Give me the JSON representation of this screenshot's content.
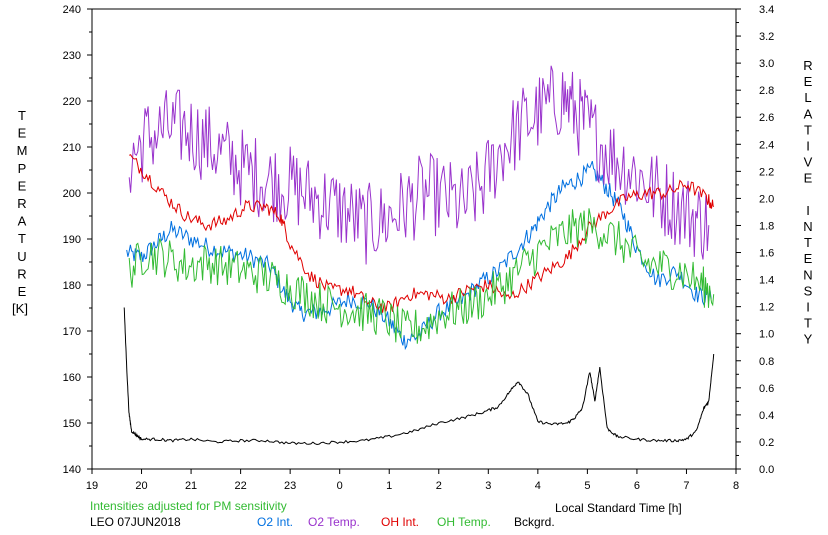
{
  "chart_data": {
    "type": "line",
    "title": "",
    "xlabel": "Local Standard Time [h]",
    "ylabel_left_letters": [
      "T",
      "E",
      "M",
      "P",
      "E",
      "R",
      "A",
      "T",
      "U",
      "R",
      "E"
    ],
    "ylabel_left_unit": "[K]",
    "ylabel_right_letters": [
      "R",
      "E",
      "L",
      "A",
      "T",
      "I",
      "V",
      "E",
      "",
      "I",
      "N",
      "T",
      "E",
      "N",
      "S",
      "I",
      "T",
      "Y"
    ],
    "x_ticks": [
      "19",
      "20",
      "21",
      "22",
      "23",
      "0",
      "1",
      "2",
      "3",
      "4",
      "5",
      "6",
      "7",
      "8"
    ],
    "x_range": [
      19,
      32
    ],
    "left_ticks": [
      "140",
      "150",
      "160",
      "170",
      "180",
      "190",
      "200",
      "210",
      "220",
      "230",
      "240"
    ],
    "left_range": [
      140,
      240
    ],
    "right_ticks": [
      "0.0",
      "0.2",
      "0.4",
      "0.6",
      "0.8",
      "1.0",
      "1.2",
      "1.4",
      "1.6",
      "1.8",
      "2.0",
      "2.2",
      "2.4",
      "2.6",
      "2.8",
      "3.0",
      "3.2",
      "3.4"
    ],
    "right_range": [
      0,
      3.4
    ],
    "grid": false,
    "note": "Intensities adjusted for PM sensitivity",
    "station": "LEO 07JUN2018",
    "series": [
      {
        "name": "O2 Int.",
        "color": "#0070e0",
        "axis": "left",
        "noise": 2.0,
        "x": [
          19.7,
          20.0,
          20.3,
          20.6,
          21.0,
          21.4,
          21.8,
          22.2,
          22.6,
          22.9,
          23.2,
          23.5,
          23.8,
          24.2,
          24.6,
          25.0,
          25.3,
          25.6,
          26.0,
          26.4,
          26.8,
          27.2,
          27.6,
          27.9,
          28.2,
          28.5,
          28.8,
          29.1,
          29.4,
          29.7,
          30.0,
          30.4,
          30.8,
          31.2,
          31.5
        ],
        "y": [
          187,
          186,
          189,
          192,
          190,
          188,
          187,
          186,
          184,
          178,
          174,
          174,
          175,
          177,
          176,
          172,
          168,
          169,
          174,
          176,
          180,
          183,
          188,
          192,
          197,
          201,
          203,
          205,
          201,
          196,
          188,
          181,
          183,
          178,
          177
        ]
      },
      {
        "name": "O2 Temp.",
        "color": "#9933cc",
        "axis": "left",
        "noise": 9.0,
        "x": [
          19.75,
          20.1,
          20.5,
          20.9,
          21.3,
          21.7,
          22.1,
          22.5,
          22.9,
          23.3,
          23.7,
          24.1,
          24.5,
          24.9,
          25.3,
          25.7,
          26.1,
          26.5,
          26.9,
          27.3,
          27.7,
          28.1,
          28.5,
          28.8,
          29.1,
          29.5,
          29.9,
          30.3,
          30.7,
          31.1,
          31.45
        ],
        "y": [
          207,
          212,
          214,
          214,
          211,
          208,
          205,
          203,
          202,
          200,
          198,
          196,
          193,
          194,
          197,
          200,
          199,
          197,
          202,
          210,
          215,
          218,
          221,
          217,
          213,
          208,
          205,
          201,
          198,
          195,
          193
        ]
      },
      {
        "name": "OH Int.",
        "color": "#e00000",
        "axis": "left",
        "noise": 1.5,
        "x": [
          19.75,
          20.1,
          20.5,
          20.9,
          21.3,
          21.7,
          22.1,
          22.5,
          22.8,
          23.0,
          23.4,
          23.8,
          24.2,
          24.6,
          25.0,
          25.4,
          25.8,
          26.2,
          26.6,
          27.0,
          27.4,
          27.8,
          28.2,
          28.6,
          29.0,
          29.4,
          29.8,
          30.2,
          30.6,
          31.0,
          31.4,
          31.55
        ],
        "y": [
          208,
          204,
          199,
          195,
          193,
          194,
          197,
          197,
          195,
          189,
          182,
          179,
          179,
          176,
          175,
          178,
          178,
          177,
          179,
          180,
          177,
          180,
          183,
          186,
          192,
          196,
          199,
          200,
          200,
          202,
          199,
          197
        ]
      },
      {
        "name": "OH Temp.",
        "color": "#33bb33",
        "axis": "left",
        "noise": 4.5,
        "x": [
          19.75,
          20.1,
          20.5,
          20.9,
          21.3,
          21.7,
          22.1,
          22.5,
          22.9,
          23.3,
          23.7,
          24.1,
          24.5,
          24.9,
          25.3,
          25.7,
          26.1,
          26.5,
          26.9,
          27.3,
          27.7,
          28.1,
          28.5,
          28.9,
          29.3,
          29.7,
          30.1,
          30.5,
          30.9,
          31.3,
          31.55
        ],
        "y": [
          183,
          187,
          186,
          184,
          185,
          184,
          183,
          182,
          180,
          178,
          176,
          175,
          174,
          173,
          170,
          171,
          174,
          175,
          177,
          180,
          184,
          188,
          191,
          193,
          192,
          189,
          185,
          184,
          183,
          180,
          178
        ]
      },
      {
        "name": "Bckgrd.",
        "color": "#000000",
        "axis": "right",
        "noise": 0.01,
        "x": [
          19.65,
          19.7,
          19.75,
          19.8,
          19.9,
          20.0,
          20.3,
          20.6,
          21.0,
          21.5,
          22.0,
          22.5,
          23.0,
          23.5,
          24.0,
          24.5,
          25.0,
          25.5,
          26.0,
          26.5,
          26.9,
          27.2,
          27.45,
          27.6,
          27.8,
          28.0,
          28.3,
          28.6,
          28.75,
          28.9,
          29.05,
          29.15,
          29.25,
          29.4,
          29.6,
          30.0,
          30.4,
          30.8,
          31.0,
          31.2,
          31.35,
          31.45,
          31.55
        ],
        "y": [
          1.2,
          0.75,
          0.4,
          0.28,
          0.25,
          0.22,
          0.22,
          0.21,
          0.22,
          0.2,
          0.21,
          0.21,
          0.19,
          0.19,
          0.2,
          0.21,
          0.24,
          0.28,
          0.34,
          0.38,
          0.42,
          0.46,
          0.58,
          0.65,
          0.55,
          0.35,
          0.33,
          0.34,
          0.38,
          0.45,
          0.72,
          0.5,
          0.75,
          0.3,
          0.24,
          0.22,
          0.21,
          0.21,
          0.22,
          0.28,
          0.45,
          0.5,
          0.85
        ]
      }
    ]
  }
}
